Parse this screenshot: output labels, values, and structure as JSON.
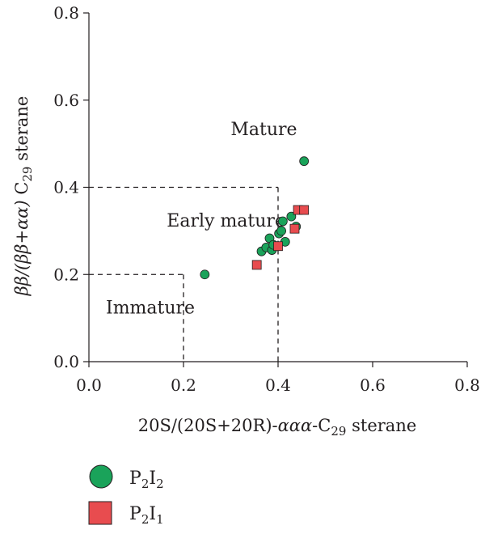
{
  "chart_data": {
    "type": "scatter",
    "xlabel": {
      "prefix": "20S/(20S+20R)-",
      "greek": "ααα",
      "mid": "-C",
      "sub": "29",
      "suffix": " sterane"
    },
    "ylabel": {
      "greek": "ββ/(ββ+αα)",
      "mid": " C",
      "sub": "29",
      "suffix": " sterane"
    },
    "xlim": [
      0.0,
      0.8
    ],
    "ylim": [
      0.0,
      0.8
    ],
    "xticks": [
      "0.0",
      "0.2",
      "0.4",
      "0.6",
      "0.8"
    ],
    "yticks": [
      "0.0",
      "0.2",
      "0.4",
      "0.6",
      "0.8"
    ],
    "grid": false,
    "regions": [
      {
        "label": "Mature",
        "x": 0.37,
        "y": 0.52
      },
      {
        "label": "Early mature",
        "x": 0.29,
        "y": 0.31
      },
      {
        "label": "Immature",
        "x": 0.13,
        "y": 0.11
      }
    ],
    "boundaries": [
      {
        "x0": 0.0,
        "y0": 0.4,
        "x1": 0.4,
        "y1": 0.4
      },
      {
        "x0": 0.4,
        "y0": 0.4,
        "x1": 0.4,
        "y1": 0.0
      },
      {
        "x0": 0.0,
        "y0": 0.2,
        "x1": 0.2,
        "y1": 0.2
      },
      {
        "x0": 0.2,
        "y0": 0.2,
        "x1": 0.2,
        "y1": 0.0
      }
    ],
    "series": [
      {
        "name": "P2I2",
        "label": {
          "a": "P",
          "a_sub": "2",
          "b": "I",
          "b_sub": "2"
        },
        "marker": "circle",
        "color": "#1aa35a",
        "points": [
          [
            0.245,
            0.2
          ],
          [
            0.365,
            0.253
          ],
          [
            0.375,
            0.262
          ],
          [
            0.382,
            0.283
          ],
          [
            0.387,
            0.256
          ],
          [
            0.39,
            0.268
          ],
          [
            0.402,
            0.294
          ],
          [
            0.407,
            0.3
          ],
          [
            0.41,
            0.322
          ],
          [
            0.415,
            0.275
          ],
          [
            0.428,
            0.333
          ],
          [
            0.438,
            0.31
          ],
          [
            0.455,
            0.46
          ]
        ]
      },
      {
        "name": "P2I1",
        "label": {
          "a": "P",
          "a_sub": "2",
          "b": "I",
          "b_sub": "1"
        },
        "marker": "square",
        "color": "#e84c4f",
        "points": [
          [
            0.355,
            0.222
          ],
          [
            0.4,
            0.265
          ],
          [
            0.435,
            0.305
          ],
          [
            0.442,
            0.348
          ],
          [
            0.455,
            0.348
          ]
        ]
      }
    ]
  }
}
